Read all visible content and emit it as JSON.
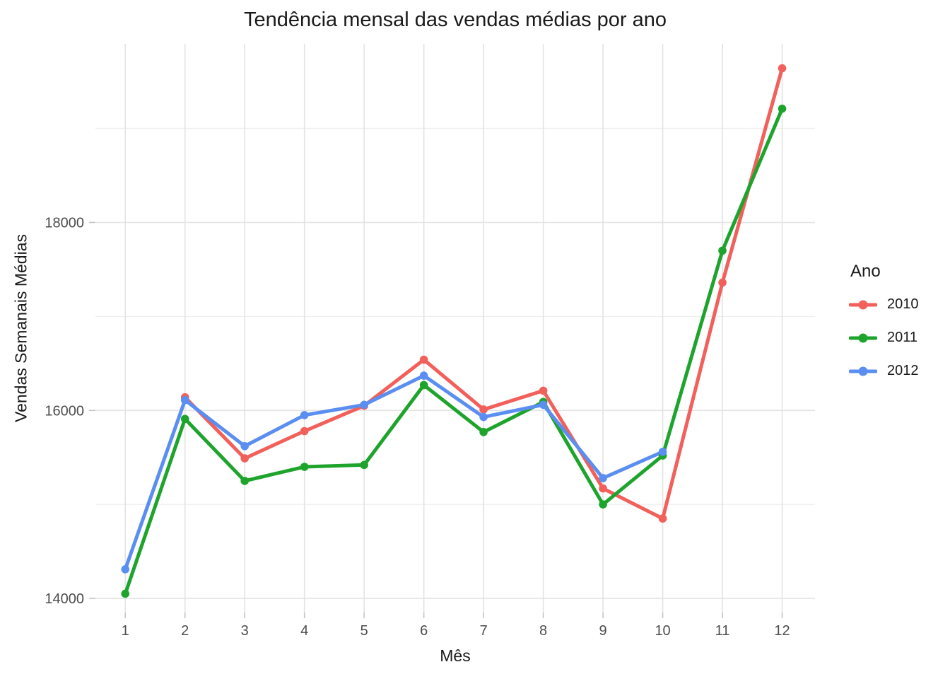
{
  "chart_data": {
    "type": "line",
    "title": "Tendência mensal das vendas médias por ano",
    "xlabel": "Mês",
    "ylabel": "Vendas Semanais Médias",
    "x_ticks": [
      1,
      2,
      3,
      4,
      5,
      6,
      7,
      8,
      9,
      10,
      11,
      12
    ],
    "y_ticks_major": [
      14000,
      16000,
      18000
    ],
    "y_ticks_minor": [
      15000,
      17000,
      19000
    ],
    "xlim": [
      0.5,
      12.55
    ],
    "ylim": [
      13850,
      19900
    ],
    "grid": true,
    "background": "#ffffff",
    "colors": {
      "grid_major": "#e3e3e3",
      "grid_minor": "#efefef",
      "tick_mark": "#c4c4c4",
      "tick_label": "#4d4d4d",
      "text": "#1a1a1a"
    },
    "legend": {
      "title": "Ano",
      "position": "right"
    },
    "series": [
      {
        "name": "2010",
        "color": "#f1605b",
        "x": [
          2,
          3,
          4,
          5,
          6,
          7,
          8,
          9,
          10,
          11,
          12
        ],
        "y": [
          16140,
          15490,
          15780,
          16050,
          16540,
          16010,
          16210,
          15170,
          14850,
          17360,
          19640
        ]
      },
      {
        "name": "2011",
        "color": "#1ea42c",
        "x": [
          1,
          2,
          3,
          4,
          5,
          6,
          7,
          8,
          9,
          10,
          11,
          12
        ],
        "y": [
          14050,
          15910,
          15250,
          15400,
          15420,
          16270,
          15770,
          16090,
          15000,
          15520,
          17700,
          19210
        ]
      },
      {
        "name": "2012",
        "color": "#5a8ef1",
        "x": [
          1,
          2,
          3,
          4,
          5,
          6,
          7,
          8,
          9,
          10
        ],
        "y": [
          14310,
          16110,
          15620,
          15950,
          16060,
          16370,
          15930,
          16060,
          15280,
          15560
        ]
      }
    ]
  }
}
